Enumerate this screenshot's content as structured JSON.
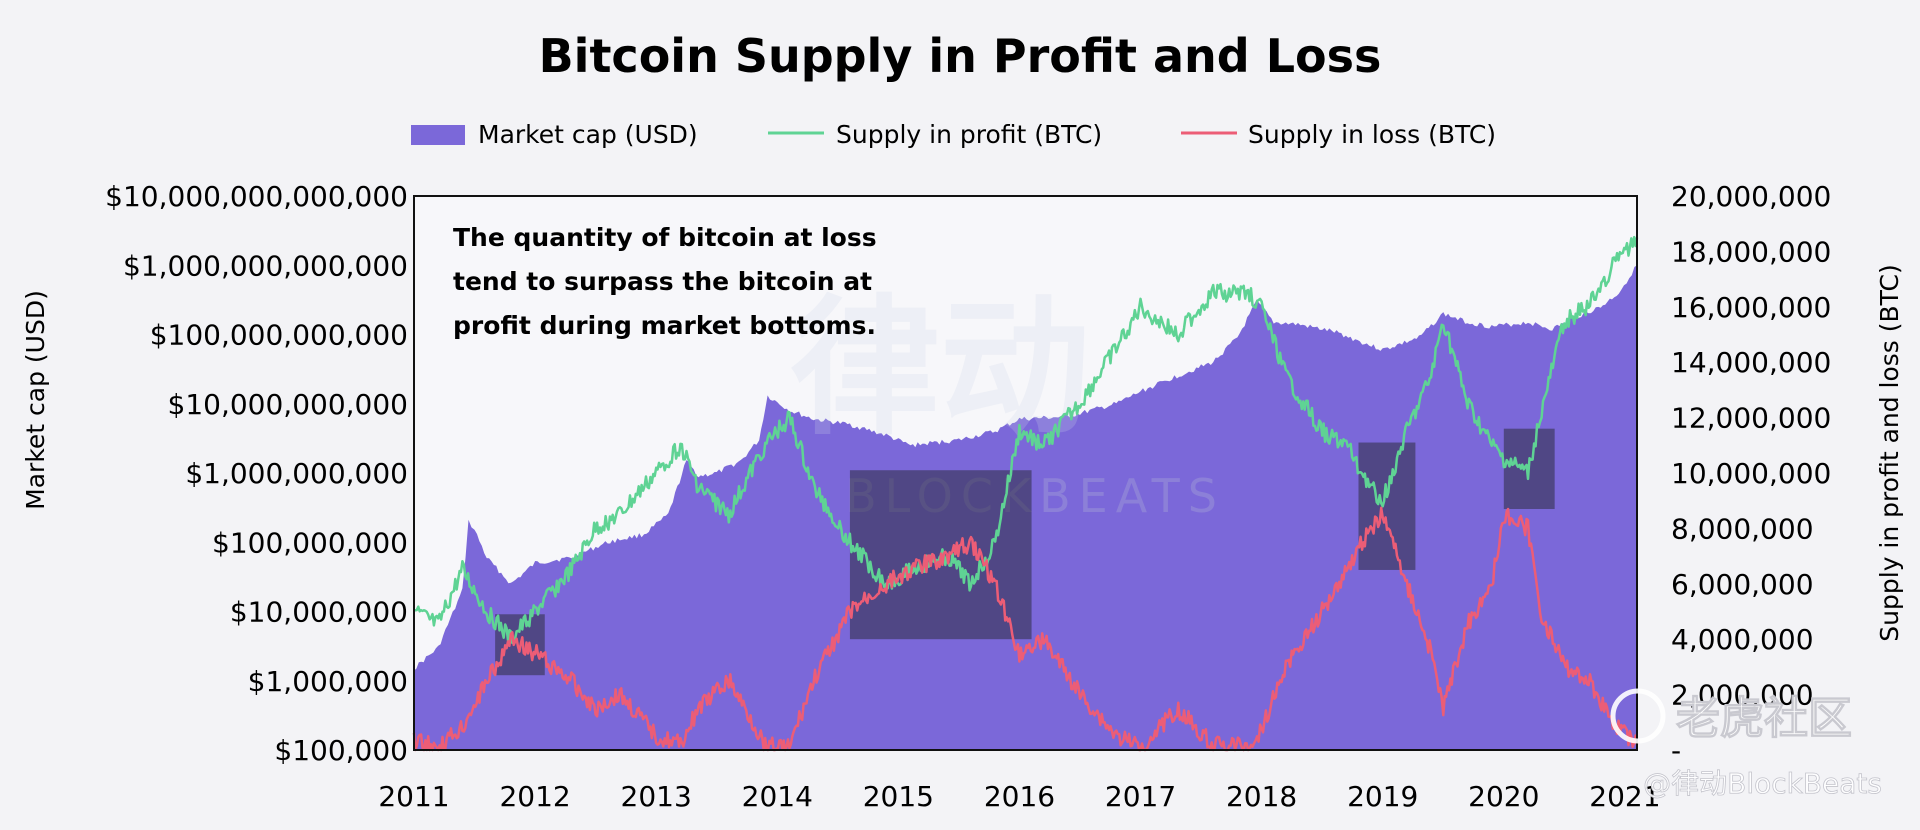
{
  "chart_data": {
    "type": "area+line",
    "title": "Bitcoin Supply in Profit and Loss",
    "legend": [
      {
        "label": "Market cap (USD)",
        "color": "#7b68d9",
        "kind": "area"
      },
      {
        "label": "Supply in profit (BTC)",
        "color": "#5fd394",
        "kind": "line"
      },
      {
        "label": "Supply in loss (BTC)",
        "color": "#ec5d76",
        "kind": "line"
      }
    ],
    "ylabel_left": "Market cap (USD)",
    "ylabel_right": "Supply in profit and loss (BTC)",
    "y_left_scale": "log",
    "y_left_range": [
      100000,
      10000000000000
    ],
    "y_left_ticks": [
      "$10,000,000,000,000",
      "$1,000,000,000,000",
      "$100,000,000,000",
      "$10,000,000,000",
      "$1,000,000,000",
      "$100,000,000",
      "$10,000,000",
      "$1,000,000",
      "$100,000"
    ],
    "y_right_range": [
      0,
      20000000
    ],
    "y_right_ticks": [
      "20,000,000",
      "18,000,000",
      "16,000,000",
      "14,000,000",
      "12,000,000",
      "10,000,000",
      "8,000,000",
      "6,000,000",
      "4,000,000",
      "2,000,000",
      "-"
    ],
    "x_range": [
      2011,
      2021.1
    ],
    "x_ticks": [
      "2011",
      "2012",
      "2013",
      "2014",
      "2015",
      "2016",
      "2017",
      "2018",
      "2019",
      "2020",
      "2021"
    ],
    "annotation": [
      "The quantity of bitcoin at loss",
      "tend to surpass the bitcoin at",
      "profit during market bottoms."
    ],
    "market_cap": {
      "x": [
        2011.0,
        2011.2,
        2011.4,
        2011.45,
        2011.5,
        2011.6,
        2011.8,
        2011.9,
        2012.0,
        2012.3,
        2012.6,
        2012.9,
        2013.1,
        2013.25,
        2013.35,
        2013.5,
        2013.7,
        2013.85,
        2013.92,
        2014.1,
        2014.3,
        2014.6,
        2014.9,
        2015.1,
        2015.5,
        2015.8,
        2016.0,
        2016.4,
        2016.8,
        2017.0,
        2017.3,
        2017.6,
        2017.8,
        2017.96,
        2018.1,
        2018.3,
        2018.6,
        2018.85,
        2019.0,
        2019.3,
        2019.5,
        2019.7,
        2019.9,
        2020.2,
        2020.4,
        2020.6,
        2020.8,
        2020.95,
        2021.1
      ],
      "y": [
        1500000,
        3000000,
        20000000,
        200000000,
        150000000,
        60000000,
        25000000,
        35000000,
        50000000,
        60000000,
        100000000,
        130000000,
        250000000,
        1500000000,
        900000000,
        1000000000,
        1500000000,
        3000000000,
        13000000000,
        8000000000,
        6000000000,
        5000000000,
        3500000000,
        2500000000,
        3000000000,
        4000000000,
        6000000000,
        6500000000,
        10000000000,
        15000000000,
        25000000000,
        40000000000,
        90000000000,
        300000000000,
        150000000000,
        140000000000,
        110000000000,
        75000000000,
        60000000000,
        90000000000,
        200000000000,
        150000000000,
        130000000000,
        150000000000,
        120000000000,
        180000000000,
        250000000000,
        400000000000,
        1000000000000
      ]
    },
    "supply_in_profit": {
      "x": [
        2011.0,
        2011.2,
        2011.4,
        2011.6,
        2011.8,
        2012.0,
        2012.3,
        2012.5,
        2012.7,
        2013.0,
        2013.2,
        2013.35,
        2013.6,
        2013.9,
        2014.1,
        2014.3,
        2014.6,
        2014.9,
        2015.1,
        2015.4,
        2015.6,
        2015.8,
        2016.0,
        2016.2,
        2016.5,
        2016.8,
        2017.0,
        2017.3,
        2017.6,
        2017.9,
        2018.0,
        2018.2,
        2018.5,
        2018.7,
        2018.9,
        2019.0,
        2019.2,
        2019.4,
        2019.5,
        2019.7,
        2019.9,
        2020.0,
        2020.2,
        2020.3,
        2020.5,
        2020.7,
        2020.9,
        2021.1
      ],
      "y": [
        5000000,
        4500000,
        6500000,
        5000000,
        4000000,
        5000000,
        6500000,
        8000000,
        8500000,
        10000000,
        11000000,
        9500000,
        8500000,
        11000000,
        12000000,
        9500000,
        7500000,
        6000000,
        6500000,
        7000000,
        6000000,
        7500000,
        11500000,
        11000000,
        12500000,
        14500000,
        16000000,
        15000000,
        16500000,
        16500000,
        16000000,
        13500000,
        11500000,
        11000000,
        9500000,
        9000000,
        11500000,
        13500000,
        15500000,
        12500000,
        11000000,
        10500000,
        10000000,
        12000000,
        15500000,
        16000000,
        17500000,
        18500000
      ]
    },
    "supply_in_loss": {
      "x": [
        2011.0,
        2011.2,
        2011.4,
        2011.6,
        2011.8,
        2012.0,
        2012.3,
        2012.5,
        2012.7,
        2013.0,
        2013.2,
        2013.35,
        2013.6,
        2013.9,
        2014.1,
        2014.3,
        2014.6,
        2014.9,
        2015.1,
        2015.4,
        2015.6,
        2015.8,
        2016.0,
        2016.2,
        2016.5,
        2016.8,
        2017.0,
        2017.3,
        2017.6,
        2017.9,
        2018.0,
        2018.2,
        2018.5,
        2018.7,
        2018.9,
        2019.0,
        2019.2,
        2019.4,
        2019.5,
        2019.7,
        2019.9,
        2020.0,
        2020.2,
        2020.3,
        2020.5,
        2020.7,
        2020.9,
        2021.1
      ],
      "y": [
        300000,
        100000,
        800000,
        2500000,
        4000000,
        3500000,
        2500000,
        1500000,
        2000000,
        500000,
        200000,
        1500000,
        2500000,
        200000,
        100000,
        2500000,
        5000000,
        6000000,
        6500000,
        7000000,
        7500000,
        6000000,
        3500000,
        4000000,
        2000000,
        500000,
        100000,
        1500000,
        200000,
        100000,
        800000,
        3000000,
        5000000,
        6500000,
        8000000,
        8500000,
        6000000,
        3500000,
        1500000,
        4500000,
        6000000,
        8500000,
        8000000,
        5000000,
        3000000,
        2500000,
        1000000,
        200000
      ]
    },
    "highlight_boxes": [
      {
        "x_from": 2011.67,
        "x_to": 2012.08,
        "y_right_from": 2700000,
        "y_right_to": 4900000
      },
      {
        "x_from": 2014.6,
        "x_to": 2016.1,
        "y_right_from": 4000000,
        "y_right_to": 10100000
      },
      {
        "x_from": 2018.8,
        "x_to": 2019.27,
        "y_right_from": 6500000,
        "y_right_to": 11100000
      },
      {
        "x_from": 2020.0,
        "x_to": 2020.42,
        "y_right_from": 8700000,
        "y_right_to": 11600000
      }
    ]
  },
  "watermarks": {
    "main_cn": "律动",
    "main_en": "BLOCKBEATS",
    "corner_cn": "老虎社区",
    "corner_credit": "@律动BlockBeats"
  }
}
